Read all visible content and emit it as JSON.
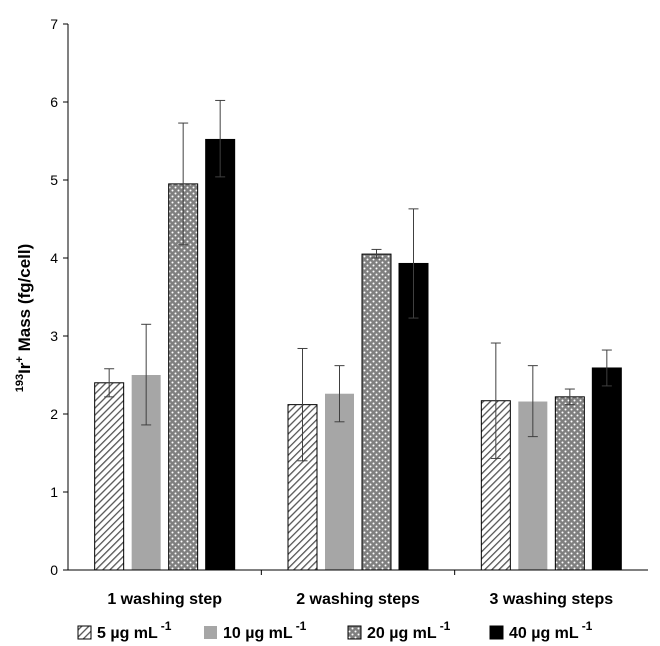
{
  "chart_data": {
    "type": "bar",
    "title": "",
    "xlabel": "",
    "ylabel": {
      "isotope": "193",
      "element": "Ir",
      "charge": "+",
      "rest": " Mass (fg/cell)"
    },
    "ylim": [
      0,
      7
    ],
    "yticks": [
      0,
      1,
      2,
      3,
      4,
      5,
      6,
      7
    ],
    "categories": [
      "1 washing step",
      "2 washing steps",
      "3 washing steps"
    ],
    "series": [
      {
        "name": "5 µg mL",
        "superscript": "-1",
        "pattern": "diagonal",
        "values": [
          2.4,
          2.12,
          2.17
        ],
        "err_low": [
          0.18,
          0.72,
          0.74
        ],
        "err_high": [
          0.18,
          0.72,
          0.74
        ]
      },
      {
        "name": "10 µg mL",
        "superscript": "-1",
        "pattern": "gray",
        "values": [
          2.5,
          2.26,
          2.16
        ],
        "err_low": [
          0.64,
          0.36,
          0.45
        ],
        "err_high": [
          0.65,
          0.36,
          0.46
        ]
      },
      {
        "name": "20 µg mL",
        "superscript": "-1",
        "pattern": "dots",
        "values": [
          4.95,
          4.05,
          2.22
        ],
        "err_low": [
          0.78,
          0.05,
          0.1
        ],
        "err_high": [
          0.78,
          0.06,
          0.1
        ]
      },
      {
        "name": "40 µg mL",
        "superscript": "-1",
        "pattern": "black",
        "values": [
          5.52,
          3.93,
          2.59
        ],
        "err_low": [
          0.48,
          0.7,
          0.23
        ],
        "err_high": [
          0.5,
          0.7,
          0.23
        ]
      }
    ],
    "grid": false,
    "legend_position": "bottom"
  },
  "colors": {
    "gray": "#a6a6a6",
    "black": "#000000",
    "pattern_fg": "#404040",
    "axis": "#000000"
  }
}
